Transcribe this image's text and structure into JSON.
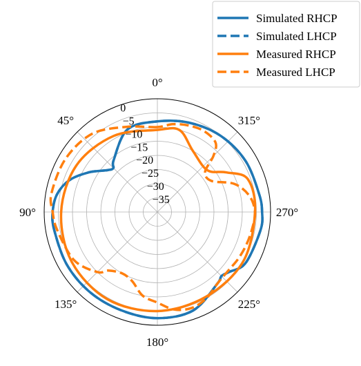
{
  "chart_data": {
    "type": "line",
    "projection": "polar",
    "theta_direction": "counterclockwise",
    "theta_zero": "top",
    "angular_ticks": [
      "0°",
      "45°",
      "90°",
      "135°",
      "180°",
      "225°",
      "270°",
      "315°"
    ],
    "radial_ticks": [
      "0",
      "−5",
      "−10",
      "−15",
      "−20",
      "−25",
      "−30",
      "−35"
    ],
    "rlim": [
      -40,
      0
    ],
    "grid": true,
    "legend_position": "top-right",
    "colors": {
      "simulated": "#1f77b4",
      "measured": "#ff7f0e",
      "grid": "#b0b0b0"
    },
    "series": [
      {
        "name": "Simulated RHCP",
        "color": "#1f77b4",
        "dash": "solid",
        "theta": [
          0,
          20,
          40,
          45,
          50,
          60,
          70,
          80,
          90,
          100,
          120,
          140,
          160,
          180,
          200,
          220,
          225,
          230,
          240,
          260,
          270,
          280,
          300,
          320,
          340
        ],
        "values": [
          -8,
          -9,
          -16,
          -18,
          -17,
          -12,
          -7,
          -4,
          -3,
          -3,
          -3,
          -3,
          -3,
          -2.5,
          -3,
          -7,
          -8,
          -7,
          -4,
          -3,
          -3,
          -3.5,
          -4,
          -5,
          -6.5
        ]
      },
      {
        "name": "Simulated LHCP",
        "color": "#1f77b4",
        "dash": "dashed",
        "theta": [
          0,
          20,
          40,
          45,
          50,
          60,
          70,
          80,
          90,
          100,
          120,
          140,
          160,
          180,
          200,
          220,
          225,
          230,
          240,
          260,
          270,
          280,
          300,
          320,
          340
        ],
        "values": [
          -8,
          -9,
          -16,
          -18,
          -17,
          -12,
          -7,
          -4,
          -3,
          -3,
          -3,
          -3,
          -3,
          -2.5,
          -3,
          -7,
          -8,
          -7,
          -4,
          -3,
          -3,
          -3.5,
          -4,
          -5,
          -6.5
        ]
      },
      {
        "name": "Measured RHCP",
        "color": "#ff7f0e",
        "dash": "solid",
        "theta": [
          0,
          30,
          60,
          90,
          120,
          150,
          180,
          210,
          240,
          270,
          290,
          300,
          310,
          330,
          345
        ],
        "values": [
          -11,
          -9,
          -7,
          -6,
          -5,
          -4.5,
          -5,
          -5.5,
          -5,
          -5.5,
          -6,
          -12,
          -17,
          -15,
          -10
        ]
      },
      {
        "name": "Measured LHCP",
        "color": "#ff7f0e",
        "dash": "dashed",
        "theta": [
          0,
          20,
          40,
          60,
          80,
          90,
          100,
          120,
          135,
          140,
          150,
          160,
          170,
          180,
          190,
          200,
          210,
          220,
          230,
          240,
          250,
          260,
          270,
          280,
          290,
          300,
          310,
          315,
          320,
          330,
          340,
          350
        ],
        "values": [
          -10,
          -8,
          -4,
          -2.5,
          -2,
          -3,
          -4,
          -6,
          -10,
          -13,
          -15,
          -14,
          -10,
          -8,
          -5,
          -4,
          -5,
          -7,
          -7.5,
          -7,
          -6.5,
          -6,
          -5.5,
          -7,
          -11,
          -18,
          -18,
          -12,
          -8,
          -7,
          -7.5,
          -8.5
        ]
      }
    ]
  }
}
